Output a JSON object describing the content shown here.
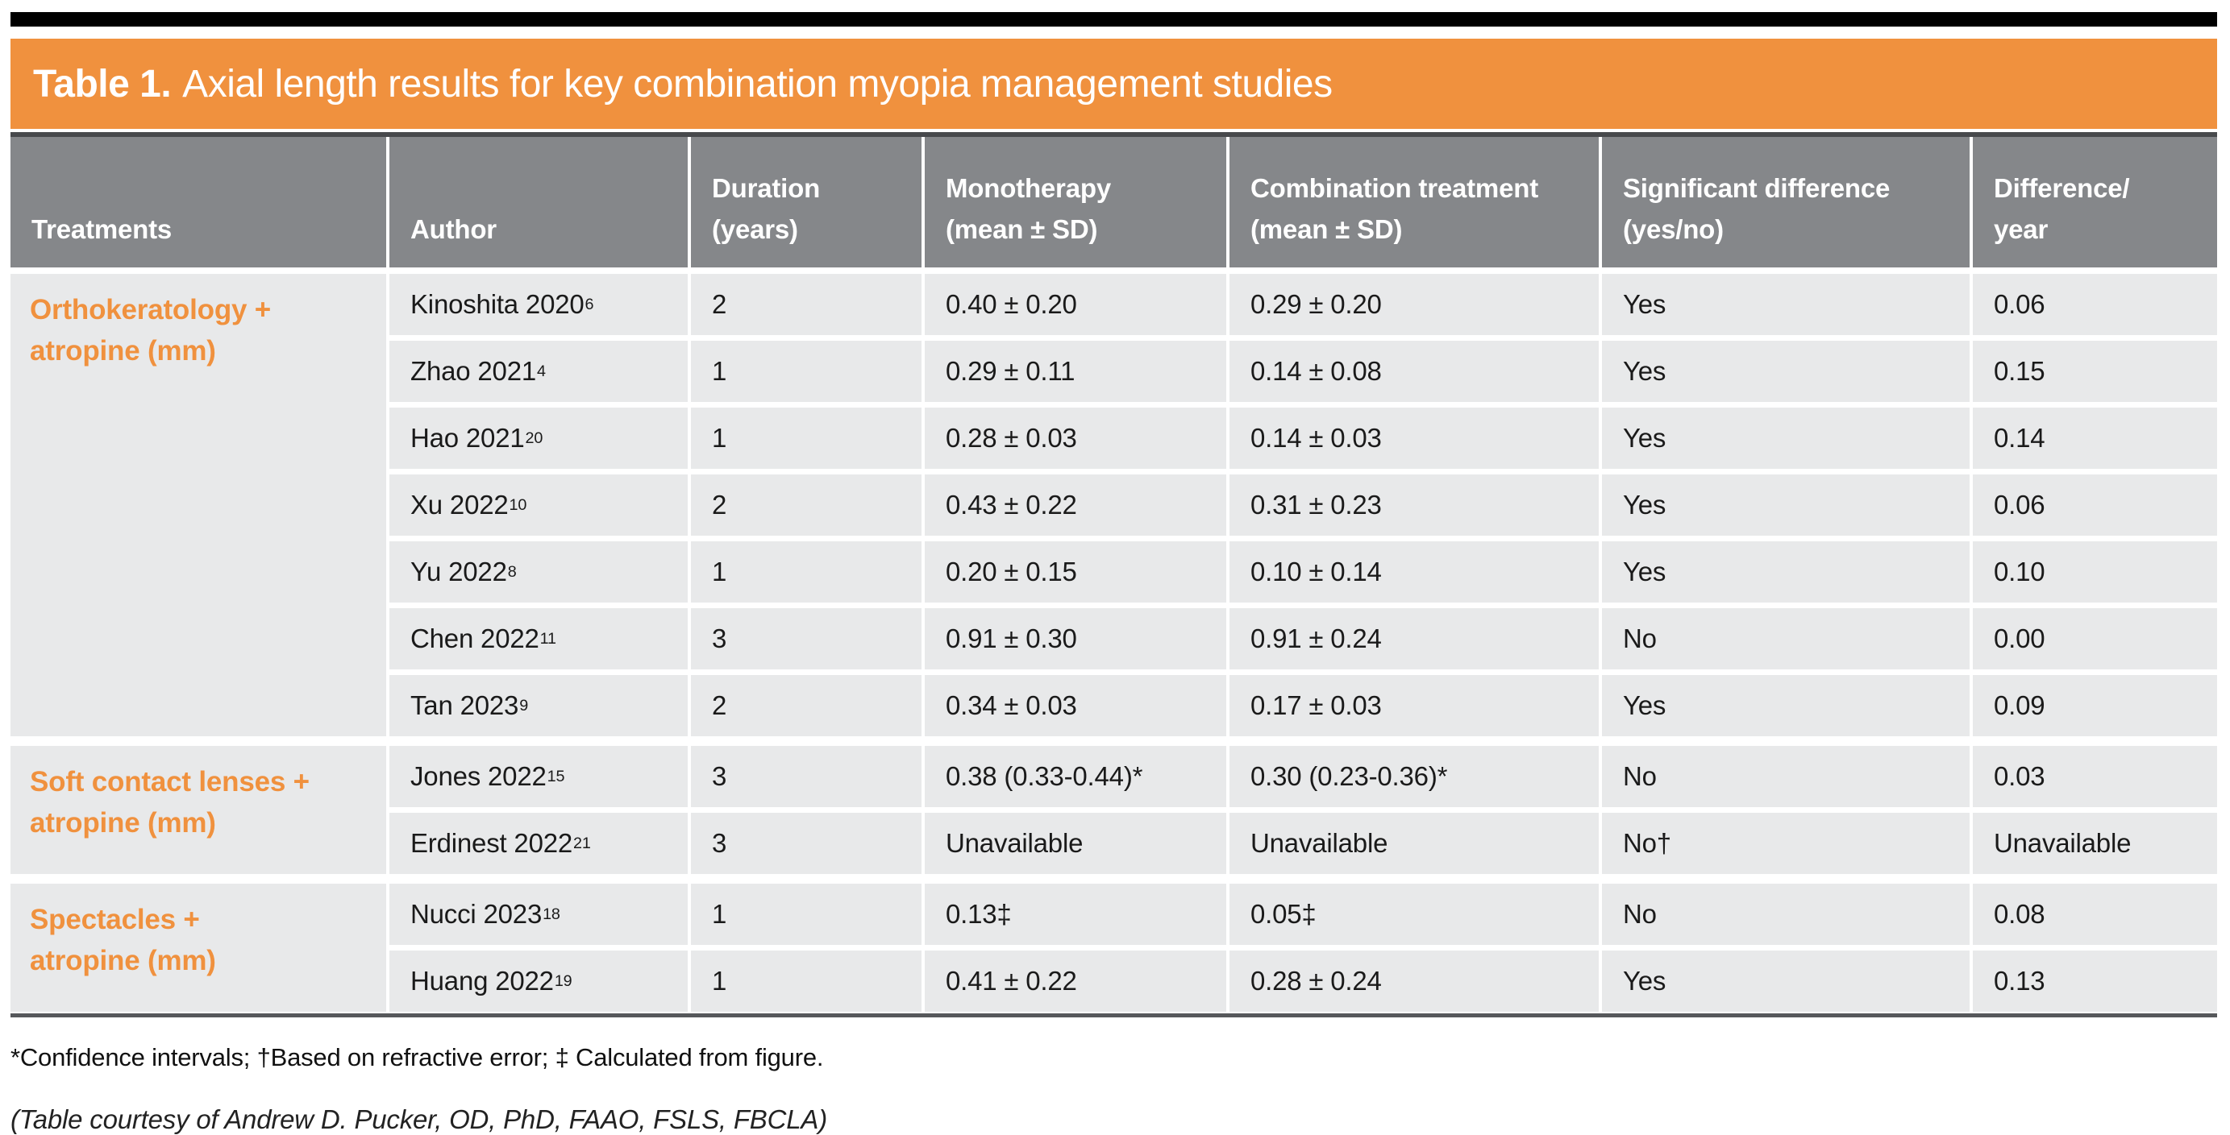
{
  "title": {
    "prefix": "Table 1.",
    "rest": "Axial length results for key combination myopia management studies"
  },
  "colors": {
    "accent_orange": "#F0913E",
    "header_gray": "#85878A",
    "cell_gray": "#E8E9EA",
    "rule_dark": "#47494C",
    "top_bar_black": "#000000"
  },
  "table": {
    "headers": [
      "Treatments",
      "Author",
      "Duration\n(years)",
      "Monotherapy\n(mean ± SD)",
      "Combination treatment\n(mean ± SD)",
      "Significant difference\n(yes/no)",
      "Difference/\nyear"
    ],
    "groups": [
      {
        "treatment": "Orthokeratology +\natropine (mm)",
        "rows": [
          {
            "author": "Kinoshita 2020",
            "ref": "6",
            "duration": "2",
            "mono": "0.40 ± 0.20",
            "combo": "0.29 ± 0.20",
            "sig": "Yes",
            "diff": "0.06"
          },
          {
            "author": "Zhao 2021",
            "ref": "4",
            "duration": "1",
            "mono": "0.29 ± 0.11",
            "combo": "0.14 ± 0.08",
            "sig": "Yes",
            "diff": "0.15"
          },
          {
            "author": "Hao 2021",
            "ref": "20",
            "duration": "1",
            "mono": "0.28 ± 0.03",
            "combo": "0.14 ± 0.03",
            "sig": "Yes",
            "diff": "0.14"
          },
          {
            "author": "Xu 2022",
            "ref": "10",
            "duration": "2",
            "mono": "0.43 ± 0.22",
            "combo": "0.31 ± 0.23",
            "sig": "Yes",
            "diff": "0.06"
          },
          {
            "author": "Yu 2022",
            "ref": "8",
            "duration": "1",
            "mono": "0.20 ± 0.15",
            "combo": "0.10 ± 0.14",
            "sig": "Yes",
            "diff": "0.10"
          },
          {
            "author": "Chen 2022",
            "ref": "11",
            "duration": "3",
            "mono": "0.91 ± 0.30",
            "combo": "0.91 ± 0.24",
            "sig": "No",
            "diff": "0.00"
          },
          {
            "author": "Tan 2023",
            "ref": "9",
            "duration": "2",
            "mono": "0.34 ± 0.03",
            "combo": "0.17 ± 0.03",
            "sig": "Yes",
            "diff": "0.09"
          }
        ]
      },
      {
        "treatment": "Soft contact lenses +\natropine (mm)",
        "rows": [
          {
            "author": "Jones 2022",
            "ref": "15",
            "duration": "3",
            "mono": "0.38 (0.33-0.44)*",
            "combo": "0.30 (0.23-0.36)*",
            "sig": "No",
            "diff": "0.03"
          },
          {
            "author": "Erdinest 2022",
            "ref": "21",
            "duration": "3",
            "mono": "Unavailable",
            "combo": "Unavailable",
            "sig": "No†",
            "diff": "Unavailable"
          }
        ]
      },
      {
        "treatment": "Spectacles +\natropine (mm)",
        "rows": [
          {
            "author": "Nucci 2023",
            "ref": "18",
            "duration": "1",
            "mono": "0.13‡",
            "combo": "0.05‡",
            "sig": "No",
            "diff": "0.08"
          },
          {
            "author": "Huang 2022",
            "ref": "19",
            "duration": "1",
            "mono": "0.41 ± 0.22",
            "combo": "0.28 ± 0.24",
            "sig": "Yes",
            "diff": "0.13"
          }
        ]
      }
    ]
  },
  "footnotes": {
    "symbols": "*Confidence intervals; †Based on refractive error; ‡ Calculated from figure.",
    "courtesy": "(Table courtesy of Andrew D. Pucker, OD, PhD, FAAO, FSLS, FBCLA)"
  }
}
